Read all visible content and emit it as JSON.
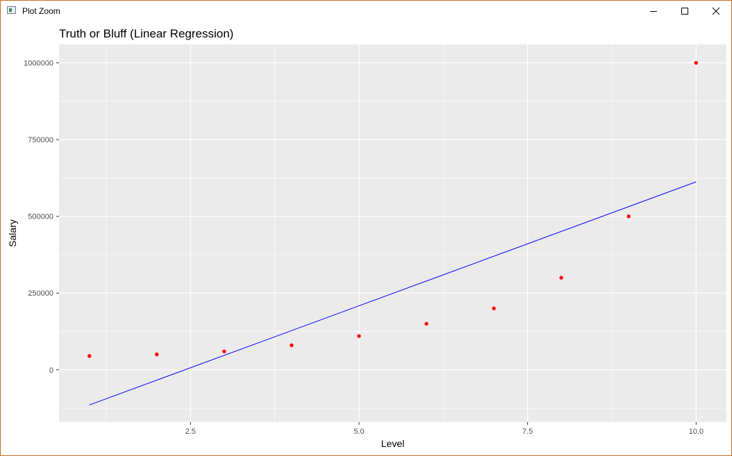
{
  "window": {
    "title": "Plot Zoom",
    "minimize_icon": "minimize-icon",
    "maximize_icon": "maximize-icon",
    "close_icon": "close-icon",
    "border_color": "#d2691e"
  },
  "chart_data": {
    "type": "scatter",
    "title": "Truth or Bluff (Linear Regression)",
    "xlabel": "Level",
    "ylabel": "Salary",
    "xlim": [
      0.55,
      10.45
    ],
    "ylim": [
      -170000,
      1060000
    ],
    "x_ticks": [
      2.5,
      5.0,
      7.5,
      10.0
    ],
    "x_tick_labels": [
      "2.5",
      "5.0",
      "7.5",
      "10.0"
    ],
    "y_ticks": [
      0,
      250000,
      500000,
      750000,
      1000000
    ],
    "y_tick_labels": [
      "0",
      "250000",
      "500000",
      "750000",
      "1000000"
    ],
    "grid": true,
    "panel_background": "#ebebeb",
    "grid_color": "#ffffff",
    "series": [
      {
        "type": "scatter",
        "color": "#ff0000",
        "x": [
          1,
          2,
          3,
          4,
          5,
          6,
          7,
          8,
          9,
          10
        ],
        "y": [
          45000,
          50000,
          60000,
          80000,
          110000,
          150000,
          200000,
          300000,
          500000,
          1000000
        ]
      },
      {
        "type": "line",
        "color": "#0000ff",
        "x": [
          1,
          10
        ],
        "y": [
          -114454.5,
          612272.7
        ]
      }
    ]
  }
}
